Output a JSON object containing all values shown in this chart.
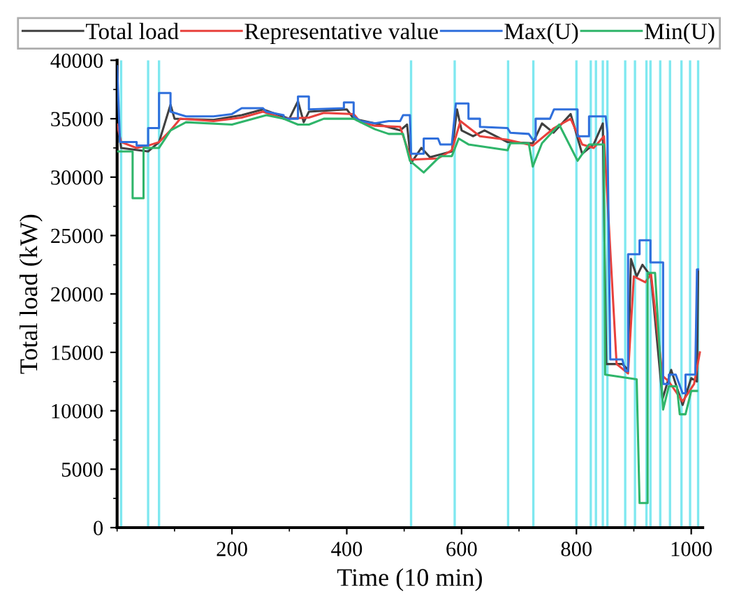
{
  "chart_data": {
    "type": "line",
    "xlabel": "Time (10 min)",
    "ylabel": "Total load (kW)",
    "xlim": [
      0,
      1020
    ],
    "ylim": [
      0,
      40000
    ],
    "xticks": [
      200,
      400,
      600,
      800,
      1000
    ],
    "yticks": [
      0,
      5000,
      10000,
      15000,
      20000,
      25000,
      30000,
      35000,
      40000
    ],
    "grid": false,
    "legend": "top",
    "marker": "none",
    "line_style": "solid",
    "ref_lines": [
      {
        "axis": "x",
        "value": 7,
        "color": "#7fe8f0"
      },
      {
        "axis": "x",
        "value": 54,
        "color": "#7fe8f0"
      },
      {
        "axis": "x",
        "value": 73,
        "color": "#7fe8f0"
      },
      {
        "axis": "x",
        "value": 512,
        "color": "#7fe8f0"
      },
      {
        "axis": "x",
        "value": 588,
        "color": "#7fe8f0"
      },
      {
        "axis": "x",
        "value": 681,
        "color": "#7fe8f0"
      },
      {
        "axis": "x",
        "value": 725,
        "color": "#7fe8f0"
      },
      {
        "axis": "x",
        "value": 800,
        "color": "#7fe8f0"
      },
      {
        "axis": "x",
        "value": 825,
        "color": "#7fe8f0"
      },
      {
        "axis": "x",
        "value": 834,
        "color": "#7fe8f0"
      },
      {
        "axis": "x",
        "value": 846,
        "color": "#7fe8f0"
      },
      {
        "axis": "x",
        "value": 854,
        "color": "#7fe8f0"
      },
      {
        "axis": "x",
        "value": 885,
        "color": "#7fe8f0"
      },
      {
        "axis": "x",
        "value": 902,
        "color": "#7fe8f0"
      },
      {
        "axis": "x",
        "value": 922,
        "color": "#7fe8f0"
      },
      {
        "axis": "x",
        "value": 929,
        "color": "#7fe8f0"
      },
      {
        "axis": "x",
        "value": 946,
        "color": "#7fe8f0"
      },
      {
        "axis": "x",
        "value": 963,
        "color": "#7fe8f0"
      },
      {
        "axis": "x",
        "value": 983,
        "color": "#7fe8f0"
      },
      {
        "axis": "x",
        "value": 998,
        "color": "#7fe8f0"
      },
      {
        "axis": "x",
        "value": 1012,
        "color": "#7fe8f0"
      }
    ],
    "series": [
      {
        "name": "Total load",
        "color": "#404040",
        "x": [
          0,
          7,
          54,
          73,
          93,
          100,
          168,
          217,
          254,
          300,
          315,
          325,
          334,
          400,
          412,
          449,
          493,
          505,
          512,
          530,
          545,
          583,
          592,
          600,
          620,
          640,
          680,
          724,
          740,
          760,
          790,
          810,
          830,
          846,
          852,
          880,
          890,
          895,
          905,
          915,
          930,
          950,
          965,
          985,
          1000,
          1010,
          1012
        ],
        "values": [
          35000,
          32500,
          32200,
          33000,
          36200,
          35000,
          34900,
          35300,
          35800,
          35000,
          36500,
          34700,
          35600,
          35800,
          35000,
          34600,
          34000,
          34500,
          31200,
          32500,
          31700,
          32200,
          35800,
          34000,
          33500,
          34000,
          33000,
          32900,
          34600,
          33800,
          35400,
          32000,
          32800,
          34600,
          14000,
          14000,
          13500,
          23000,
          21500,
          22500,
          21500,
          11000,
          13500,
          10500,
          12800,
          12500,
          22000
        ]
      },
      {
        "name": "Representative value",
        "color": "#e8413c",
        "x": [
          0,
          7,
          34,
          54,
          73,
          93,
          110,
          168,
          217,
          254,
          290,
          334,
          360,
          412,
          424,
          449,
          493,
          512,
          559,
          583,
          598,
          632,
          680,
          724,
          761,
          790,
          810,
          830,
          848,
          870,
          890,
          900,
          920,
          930,
          950,
          961,
          985,
          1005,
          1015
        ],
        "values": [
          34500,
          33000,
          32500,
          32700,
          33000,
          34000,
          35000,
          34800,
          35100,
          35600,
          35000,
          35100,
          35500,
          35400,
          34700,
          34400,
          34300,
          31500,
          31600,
          32300,
          34800,
          33500,
          33200,
          32700,
          34200,
          35000,
          32800,
          32500,
          33500,
          14000,
          13200,
          21500,
          21000,
          21700,
          13000,
          12500,
          10800,
          12300,
          15000
        ]
      },
      {
        "name": "Max(U)",
        "color": "#2f6fdc",
        "x": [
          0,
          5,
          34,
          34,
          54,
          54,
          73,
          73,
          93,
          93,
          120,
          168,
          200,
          217,
          254,
          260,
          290,
          290,
          315,
          315,
          334,
          334,
          395,
          395,
          412,
          412,
          424,
          449,
          473,
          493,
          498,
          510,
          512,
          534,
          534,
          559,
          563,
          583,
          590,
          612,
          612,
          632,
          632,
          680,
          685,
          717,
          724,
          729,
          729,
          754,
          761,
          802,
          802,
          822,
          822,
          851,
          854,
          859,
          880,
          885,
          890,
          890,
          910,
          910,
          929,
          929,
          951,
          951,
          961,
          961,
          973,
          985,
          990,
          990,
          1007,
          1010,
          1012
        ],
        "values": [
          39500,
          33000,
          33000,
          32700,
          32700,
          34200,
          34200,
          37200,
          37200,
          35600,
          35200,
          35200,
          35400,
          35900,
          35900,
          35600,
          35300,
          35000,
          35000,
          36900,
          36900,
          35800,
          35900,
          36400,
          36400,
          35200,
          34800,
          34600,
          34800,
          34800,
          35300,
          35300,
          32000,
          32000,
          33300,
          33300,
          32800,
          32800,
          36300,
          36300,
          35000,
          35000,
          34300,
          34200,
          33800,
          33700,
          33200,
          33200,
          35000,
          35000,
          35800,
          35800,
          33500,
          33500,
          35200,
          35200,
          33800,
          14400,
          14400,
          13400,
          13400,
          23400,
          23400,
          24600,
          24600,
          22700,
          22700,
          12300,
          12300,
          13100,
          13100,
          11500,
          11500,
          13100,
          13100,
          22100,
          22100
        ]
      },
      {
        "name": "Min(U)",
        "color": "#2fb56a",
        "x": [
          0,
          27,
          27,
          46,
          46,
          73,
          93,
          120,
          200,
          260,
          290,
          315,
          334,
          360,
          412,
          449,
          473,
          498,
          510,
          534,
          563,
          583,
          595,
          612,
          680,
          685,
          717,
          724,
          740,
          770,
          802,
          822,
          848,
          850,
          905,
          910,
          924,
          924,
          937,
          951,
          961,
          975,
          980,
          990,
          1000,
          1010
        ],
        "values": [
          32200,
          32200,
          28200,
          28200,
          32500,
          32500,
          34000,
          34700,
          34500,
          35300,
          35000,
          34500,
          34500,
          35000,
          35000,
          34100,
          33700,
          33700,
          31400,
          30400,
          31800,
          31800,
          33300,
          32800,
          32300,
          32900,
          32900,
          30900,
          32900,
          34500,
          31400,
          32800,
          32800,
          13100,
          12700,
          2100,
          2100,
          21800,
          21800,
          10100,
          12100,
          12100,
          9700,
          9700,
          11700,
          11700
        ]
      }
    ]
  }
}
